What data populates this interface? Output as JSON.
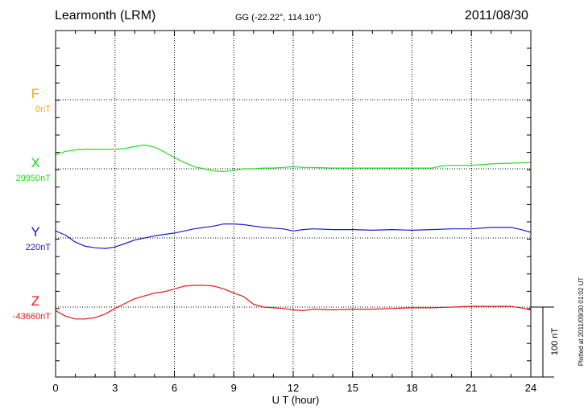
{
  "header": {
    "station": "Learmonth (LRM)",
    "coords": "GG (-22.22°, 114.10°)",
    "date": "2011/08/30"
  },
  "plotted_note": "Plotted at 2011/09/30 01:02 UT",
  "scale_bar": {
    "label": "100 nT",
    "value_nT": 100
  },
  "colors": {
    "F": "#ffa500",
    "X": "#22dd22",
    "Y": "#1a1acc",
    "Z": "#dd1a1a",
    "frame": "#000000",
    "grid": "#000000"
  },
  "chart_data": {
    "type": "line",
    "xlabel": "U T (hour)",
    "xlim": [
      0,
      24
    ],
    "xticks": [
      "0",
      "3",
      "6",
      "9",
      "12",
      "15",
      "18",
      "21",
      "24"
    ],
    "grid": true,
    "series": [
      {
        "name": "F",
        "baseline_label": "0nT",
        "color": "#ffa500",
        "baseline_nT": 0,
        "x": [],
        "y": []
      },
      {
        "name": "X",
        "baseline_label": "29950nT",
        "color": "#22dd22",
        "baseline_nT": 29950,
        "x": [
          0,
          0.5,
          1,
          1.5,
          2,
          2.5,
          3,
          3.5,
          4,
          4.5,
          5,
          5.5,
          6,
          6.5,
          7,
          7.5,
          8,
          8.5,
          9,
          9.5,
          10,
          10.5,
          11,
          11.5,
          12,
          12.5,
          13,
          14,
          15,
          16,
          17,
          18,
          19,
          19.5,
          20,
          21,
          22,
          23,
          24
        ],
        "y": [
          29970,
          29975,
          29977,
          29978,
          29978,
          29978,
          29978,
          29979,
          29982,
          29984,
          29981,
          29974,
          29966,
          29959,
          29953,
          29950,
          29947,
          29946,
          29948,
          29950,
          29950,
          29951,
          29951,
          29952,
          29953,
          29952,
          29952,
          29951,
          29951,
          29951,
          29951,
          29951,
          29951,
          29954,
          29955,
          29955,
          29957,
          29958,
          29959
        ]
      },
      {
        "name": "Y",
        "baseline_label": "220nT",
        "color": "#1a1acc",
        "baseline_nT": 220,
        "x": [
          0,
          0.5,
          1,
          1.5,
          2,
          2.5,
          3,
          3.5,
          4,
          4.5,
          5,
          5.5,
          6,
          6.5,
          7,
          7.5,
          8,
          8.5,
          9,
          9.5,
          10,
          10.5,
          11,
          11.5,
          12,
          12.5,
          13,
          14,
          15,
          16,
          17,
          18,
          19,
          20,
          21,
          22,
          23,
          23.5,
          24
        ],
        "y": [
          230,
          224,
          214,
          208,
          206,
          205,
          207,
          212,
          217,
          220,
          223,
          225,
          227,
          230,
          233,
          235,
          237,
          240,
          240,
          239,
          237,
          235,
          234,
          233,
          230,
          232,
          233,
          232,
          232,
          231,
          232,
          231,
          232,
          233,
          233,
          235,
          235,
          232,
          228
        ]
      },
      {
        "name": "Z",
        "baseline_label": "-43660nT",
        "color": "#dd1a1a",
        "baseline_nT": -43660,
        "x": [
          0,
          0.5,
          1,
          1.5,
          2,
          2.5,
          3,
          3.5,
          4,
          4.5,
          5,
          5.5,
          6,
          6.5,
          7,
          7.5,
          8,
          8.5,
          9,
          9.5,
          10,
          10.5,
          11,
          11.5,
          12,
          12.5,
          13,
          14,
          15,
          16,
          17,
          18,
          19,
          20,
          21,
          22,
          22.5,
          23,
          23.5,
          24
        ],
        "y": [
          -43665,
          -43673,
          -43677,
          -43677,
          -43675,
          -43670,
          -43662,
          -43655,
          -43648,
          -43644,
          -43640,
          -43638,
          -43634,
          -43630,
          -43629,
          -43629,
          -43630,
          -43634,
          -43640,
          -43645,
          -43656,
          -43660,
          -43661,
          -43662,
          -43664,
          -43665,
          -43663,
          -43664,
          -43663,
          -43663,
          -43662,
          -43661,
          -43661,
          -43660,
          -43659,
          -43659,
          -43659,
          -43659,
          -43661,
          -43664
        ]
      }
    ]
  }
}
